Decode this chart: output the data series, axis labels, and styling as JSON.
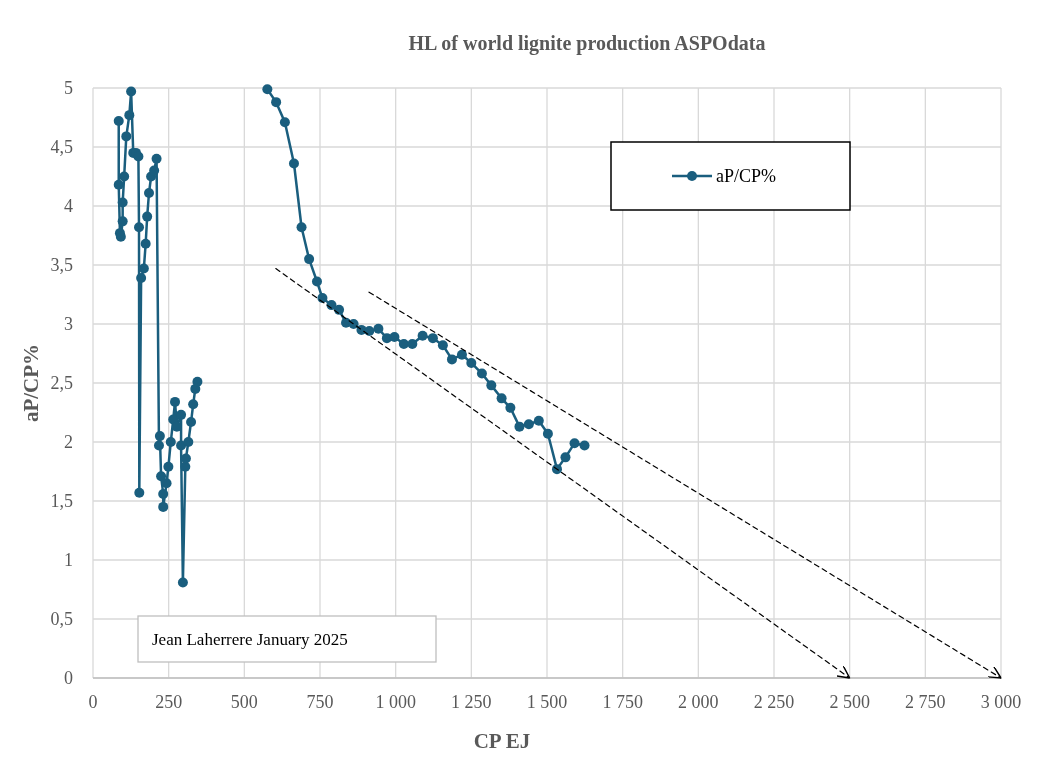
{
  "chart_data": {
    "type": "line",
    "title": "HL of world lignite production ASPOdata",
    "xlabel": "CP EJ",
    "ylabel": "aP/CP%",
    "xlim": [
      0,
      3000
    ],
    "ylim": [
      0,
      5
    ],
    "xticks": [
      0,
      250,
      500,
      750,
      {
        "value": 1000,
        "label": "1 000"
      },
      {
        "value": 1250,
        "label": "1 250"
      },
      {
        "value": 1500,
        "label": "1 500"
      },
      {
        "value": 1750,
        "label": "1 750"
      },
      {
        "value": 2000,
        "label": "2 000"
      },
      {
        "value": 2250,
        "label": "2 250"
      },
      {
        "value": 2500,
        "label": "2 500"
      },
      {
        "value": 2750,
        "label": "2 750"
      },
      {
        "value": 3000,
        "label": "3 000"
      }
    ],
    "yticks": [
      0,
      {
        "value": 0.5,
        "label": "0,5"
      },
      1,
      {
        "value": 1.5,
        "label": "1,5"
      },
      2,
      {
        "value": 2.5,
        "label": "2,5"
      },
      3,
      {
        "value": 3.5,
        "label": "3,5"
      },
      4,
      {
        "value": 4.5,
        "label": "4,5"
      },
      5
    ],
    "grid": true,
    "legend": "top right",
    "marker": "circle",
    "line_style": "solid",
    "annotations": [
      "Jean Laherrere January 2025"
    ],
    "series": [
      {
        "name": "aP/CP%",
        "color": "#1a5e7e",
        "x": [
          85,
          85,
          89,
          92,
          98,
          98,
          103,
          110,
          120,
          126,
          133,
          142,
          150,
          152,
          153,
          159,
          168,
          174,
          179,
          185,
          192,
          202,
          210,
          218,
          221,
          225,
          232,
          232,
          243,
          249,
          257,
          265,
          271,
          277,
          291,
          291,
          297,
          305,
          307,
          315,
          324,
          331,
          338,
          345,
          460,
          576,
          605,
          634,
          664,
          689,
          714,
          740,
          758,
          788,
          813,
          836,
          861,
          887,
          913,
          943,
          971,
          996,
          1027,
          1055,
          1089,
          1123,
          1156,
          1186,
          1219,
          1250,
          1285,
          1316,
          1350,
          1379,
          1409,
          1440,
          1473,
          1503,
          1533,
          1561,
          1591,
          1624
        ],
        "values": [
          4.72,
          4.18,
          3.77,
          3.74,
          3.87,
          4.03,
          4.25,
          4.59,
          4.77,
          4.97,
          4.45,
          4.45,
          4.42,
          3.82,
          1.57,
          3.39,
          3.47,
          3.68,
          3.91,
          4.11,
          4.25,
          4.3,
          4.4,
          1.97,
          2.05,
          1.71,
          1.56,
          1.45,
          1.65,
          1.79,
          2,
          2.19,
          2.34,
          2.13,
          2.23,
          1.97,
          0.81,
          1.79,
          1.86,
          2,
          2.17,
          2.32,
          2.45,
          2.51,
          null,
          4.99,
          4.88,
          4.71,
          4.36,
          3.82,
          3.55,
          3.36,
          3.22,
          3.16,
          3.12,
          3.01,
          3,
          2.95,
          2.94,
          2.96,
          2.88,
          2.89,
          2.83,
          2.83,
          2.9,
          2.88,
          2.82,
          2.7,
          2.74,
          2.67,
          2.58,
          2.48,
          2.37,
          2.29,
          2.13,
          2.15,
          2.18,
          2.07,
          1.77,
          1.87,
          1.99,
          1.97
        ]
      },
      {
        "type": "line",
        "color": "#000000",
        "line_style": "dashed",
        "marker": "none",
        "x": [
          604,
          2500
        ],
        "values": [
          3.47,
          0
        ]
      },
      {
        "type": "line",
        "color": "#000000",
        "line_style": "dashed",
        "marker": "none",
        "x": [
          912,
          3000
        ],
        "values": [
          3.27,
          0
        ]
      }
    ]
  }
}
